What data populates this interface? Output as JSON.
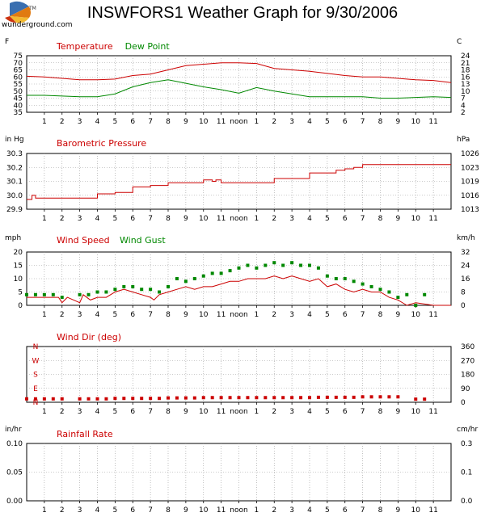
{
  "logo": {
    "wordmark": "wunderground.com",
    "tm": "TM"
  },
  "title": "INSWFORS1 Weather Graph for 9/30/2006",
  "x_tick_labels": [
    "1",
    "2",
    "3",
    "4",
    "5",
    "6",
    "7",
    "8",
    "9",
    "10",
    "11",
    "noon",
    "1",
    "2",
    "3",
    "4",
    "5",
    "6",
    "7",
    "8",
    "9",
    "10",
    "11"
  ],
  "colors": {
    "red": "#cc0000",
    "green": "#008800",
    "grid": "#999999"
  },
  "chart_data": [
    {
      "type": "line",
      "title_series": [
        "Temperature",
        "Dew Point"
      ],
      "left_unit": "F",
      "right_unit": "C",
      "ylim": [
        35,
        75
      ],
      "left_ticks": [
        "75",
        "70",
        "65",
        "60",
        "55",
        "50",
        "45",
        "40",
        "35"
      ],
      "right_ticks": [
        "24",
        "21",
        "18",
        "16",
        "13",
        "10",
        "7",
        "4",
        "2"
      ],
      "xlim_hours": [
        0,
        24
      ],
      "series": [
        {
          "name": "Temperature",
          "color": "#cc0000",
          "x": [
            0,
            1,
            2,
            3,
            4,
            5,
            6,
            7,
            8,
            9,
            10,
            11,
            12,
            13,
            14,
            15,
            16,
            17,
            18,
            19,
            20,
            21,
            22,
            23,
            24
          ],
          "values": [
            60.5,
            60,
            59,
            58,
            58,
            58.5,
            61,
            62,
            65,
            68,
            69,
            70,
            70,
            69.5,
            66,
            65,
            64,
            62.5,
            61,
            60,
            60,
            59,
            58,
            57.5,
            56
          ]
        },
        {
          "name": "Dew Point",
          "color": "#008800",
          "x": [
            0,
            1,
            2,
            3,
            4,
            5,
            6,
            7,
            8,
            9,
            10,
            11,
            12,
            13,
            14,
            15,
            16,
            17,
            18,
            19,
            20,
            21,
            22,
            23,
            24
          ],
          "values": [
            47,
            47,
            46.5,
            46,
            46,
            48,
            53,
            56,
            58,
            55.5,
            53,
            51,
            48.5,
            52.5,
            50,
            48,
            46,
            46,
            46,
            46,
            45,
            45,
            45.5,
            46,
            45.5
          ]
        }
      ]
    },
    {
      "type": "line",
      "title_series": [
        "Barometric Pressure"
      ],
      "left_unit": "in Hg",
      "right_unit": "hPa",
      "ylim": [
        29.9,
        30.3
      ],
      "left_ticks": [
        "30.3",
        "30.2",
        "30.1",
        "30.0",
        "29.9"
      ],
      "right_ticks": [
        "1026",
        "1023",
        "1019",
        "1016",
        "1013"
      ],
      "xlim_hours": [
        0,
        24
      ],
      "series": [
        {
          "name": "Barometric Pressure",
          "color": "#cc0000",
          "step": true,
          "x": [
            0,
            0.3,
            0.5,
            1,
            2,
            3,
            4,
            5,
            6,
            7,
            8,
            9,
            10,
            10.5,
            10.7,
            11,
            12,
            13,
            14,
            15,
            16,
            17,
            17.5,
            18,
            18.5,
            19,
            20,
            21,
            22,
            23,
            24
          ],
          "values": [
            29.97,
            30.0,
            29.98,
            29.98,
            29.98,
            29.98,
            30.01,
            30.02,
            30.06,
            30.07,
            30.09,
            30.09,
            30.11,
            30.1,
            30.11,
            30.09,
            30.09,
            30.09,
            30.12,
            30.12,
            30.16,
            30.16,
            30.18,
            30.19,
            30.2,
            30.22,
            30.22,
            30.22,
            30.22,
            30.22,
            30.22
          ]
        }
      ]
    },
    {
      "type": "line",
      "title_series": [
        "Wind Speed",
        "Wind Gust"
      ],
      "left_unit": "mph",
      "right_unit": "km/h",
      "ylim": [
        0,
        20
      ],
      "left_ticks": [
        "20",
        "15",
        "10",
        "5",
        "0"
      ],
      "right_ticks": [
        "32",
        "24",
        "16",
        "8",
        "0"
      ],
      "xlim_hours": [
        0,
        24
      ],
      "series": [
        {
          "name": "Wind Speed",
          "color": "#cc0000",
          "x": [
            0,
            1,
            1.8,
            2,
            2.3,
            3,
            3.2,
            3.6,
            4,
            4.5,
            5,
            5.5,
            6,
            6.5,
            7,
            7.2,
            7.5,
            8,
            8.5,
            9,
            9.5,
            10,
            10.5,
            11,
            11.5,
            12,
            12.5,
            13,
            13.5,
            14,
            14.5,
            15,
            15.5,
            16,
            16.5,
            17,
            17.5,
            18,
            18.5,
            19,
            19.5,
            20,
            20.5,
            21,
            21.5,
            22,
            23,
            24
          ],
          "values": [
            3,
            3,
            3,
            1,
            3,
            1,
            4,
            2,
            3,
            3,
            5,
            6,
            5,
            4,
            3,
            2,
            4,
            5,
            6,
            7,
            6,
            7,
            7,
            8,
            9,
            9,
            10,
            10,
            10,
            11,
            10,
            11,
            10,
            9,
            10,
            7,
            8,
            6,
            5,
            6,
            5,
            5,
            3,
            2,
            0,
            1,
            0,
            0
          ]
        },
        {
          "name": "Wind Gust",
          "color": "#008800",
          "dots": true,
          "x": [
            0,
            0.5,
            1,
            1.5,
            2,
            3,
            3.5,
            4,
            4.5,
            5,
            5.5,
            6,
            6.5,
            7,
            7.5,
            8,
            8.5,
            9,
            9.5,
            10,
            10.5,
            11,
            11.5,
            12,
            12.5,
            13,
            13.5,
            14,
            14.5,
            15,
            15.5,
            16,
            16.5,
            17,
            17.5,
            18,
            18.5,
            19,
            19.5,
            20,
            20.5,
            21,
            21.5,
            22,
            22.5
          ],
          "values": [
            4,
            4,
            4,
            4,
            3,
            4,
            4,
            5,
            5,
            6,
            7,
            7,
            6,
            6,
            5,
            7,
            10,
            9,
            10,
            11,
            12,
            12,
            13,
            14,
            15,
            14,
            15,
            16,
            15,
            16,
            15,
            15,
            14,
            11,
            10,
            10,
            9,
            8,
            7,
            6,
            5,
            3,
            4,
            0,
            4
          ]
        }
      ]
    },
    {
      "type": "scatter",
      "title_series": [
        "Wind Dir (deg)"
      ],
      "left_unit": "",
      "right_unit": "",
      "ylim": [
        0,
        360
      ],
      "left_ticks": [
        "N",
        "W",
        "S",
        "E",
        "N"
      ],
      "right_ticks": [
        "360",
        "270",
        "180",
        "90",
        "0"
      ],
      "xlim_hours": [
        0,
        24
      ],
      "series": [
        {
          "name": "Wind Dir (deg)",
          "color": "#cc0000",
          "x": [
            0,
            0.5,
            1,
            1.5,
            2,
            3,
            3.5,
            4,
            4.5,
            5,
            5.5,
            6,
            6.5,
            7,
            7.5,
            8,
            8.5,
            9,
            9.5,
            10,
            10.5,
            11,
            11.5,
            12,
            12.5,
            13,
            13.5,
            14,
            14.5,
            15,
            15.5,
            16,
            16.5,
            17,
            17.5,
            18,
            18.5,
            19,
            19.5,
            20,
            20.5,
            21,
            22,
            22.5
          ],
          "values": [
            22,
            22,
            22,
            22,
            22,
            22,
            22,
            22,
            22,
            25,
            25,
            25,
            25,
            25,
            25,
            28,
            28,
            28,
            28,
            30,
            30,
            30,
            30,
            30,
            30,
            30,
            30,
            30,
            30,
            30,
            30,
            30,
            32,
            32,
            32,
            32,
            32,
            35,
            35,
            35,
            35,
            35,
            20,
            20
          ]
        }
      ]
    },
    {
      "type": "line",
      "title_series": [
        "Rainfall Rate"
      ],
      "left_unit": "in/hr",
      "right_unit": "cm/hr",
      "ylim": [
        0,
        0.1
      ],
      "left_ticks": [
        "0.10",
        "0.05",
        "0.00"
      ],
      "right_ticks": [
        "0.3",
        "0.1",
        "0.0"
      ],
      "xlim_hours": [
        0,
        24
      ],
      "series": []
    }
  ]
}
